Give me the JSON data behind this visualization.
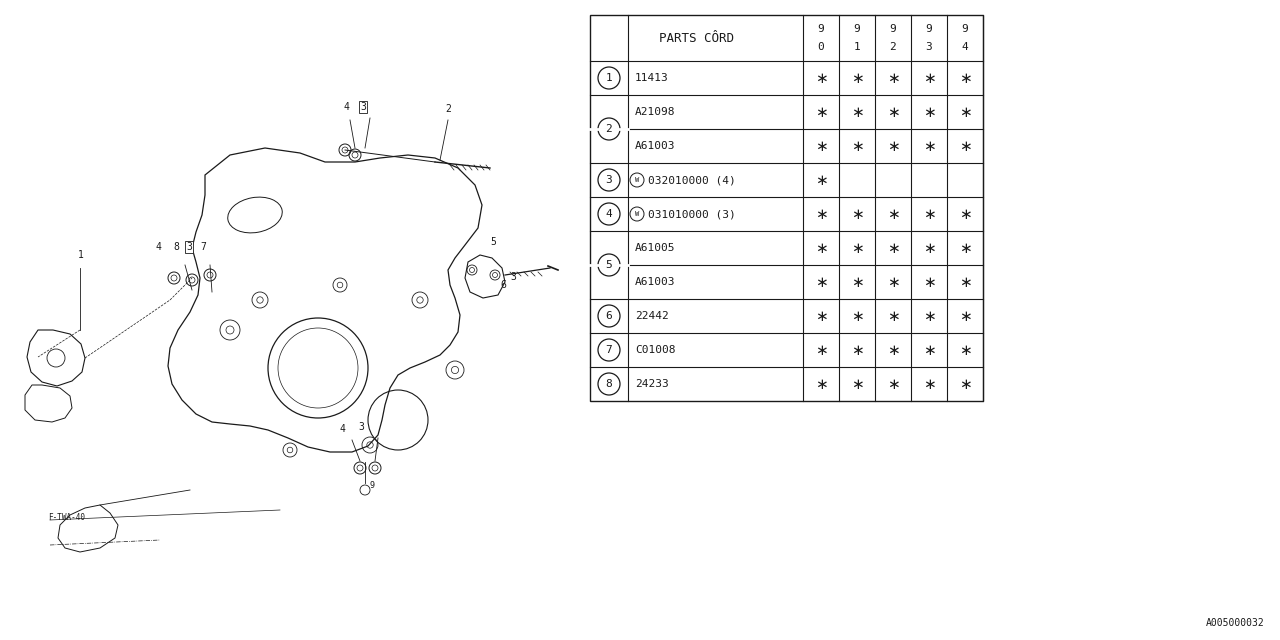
{
  "bg_color": "#ffffff",
  "diagram_code": "A005000032",
  "table": {
    "rows": [
      {
        "ref": "1",
        "part": "11413",
        "w_prefix": false,
        "avail": [
          true,
          true,
          true,
          true,
          true
        ],
        "merged_ref": false
      },
      {
        "ref": "2",
        "part": "A21098",
        "w_prefix": false,
        "avail": [
          true,
          true,
          true,
          true,
          true
        ],
        "merged_ref": false
      },
      {
        "ref": "2",
        "part": "A61003",
        "w_prefix": false,
        "avail": [
          true,
          true,
          true,
          true,
          true
        ],
        "merged_ref": true
      },
      {
        "ref": "3",
        "part": "032010000 (4)",
        "w_prefix": true,
        "avail": [
          true,
          false,
          false,
          false,
          false
        ],
        "merged_ref": false
      },
      {
        "ref": "4",
        "part": "031010000 (3)",
        "w_prefix": true,
        "avail": [
          true,
          true,
          true,
          true,
          true
        ],
        "merged_ref": false
      },
      {
        "ref": "5",
        "part": "A61005",
        "w_prefix": false,
        "avail": [
          true,
          true,
          true,
          true,
          true
        ],
        "merged_ref": false
      },
      {
        "ref": "5",
        "part": "A61003",
        "w_prefix": false,
        "avail": [
          true,
          true,
          true,
          true,
          true
        ],
        "merged_ref": true
      },
      {
        "ref": "6",
        "part": "22442",
        "w_prefix": false,
        "avail": [
          true,
          true,
          true,
          true,
          true
        ],
        "merged_ref": false
      },
      {
        "ref": "7",
        "part": "C01008",
        "w_prefix": false,
        "avail": [
          true,
          true,
          true,
          true,
          true
        ],
        "merged_ref": false
      },
      {
        "ref": "8",
        "part": "24233",
        "w_prefix": false,
        "avail": [
          true,
          true,
          true,
          true,
          true
        ],
        "merged_ref": false
      }
    ]
  }
}
